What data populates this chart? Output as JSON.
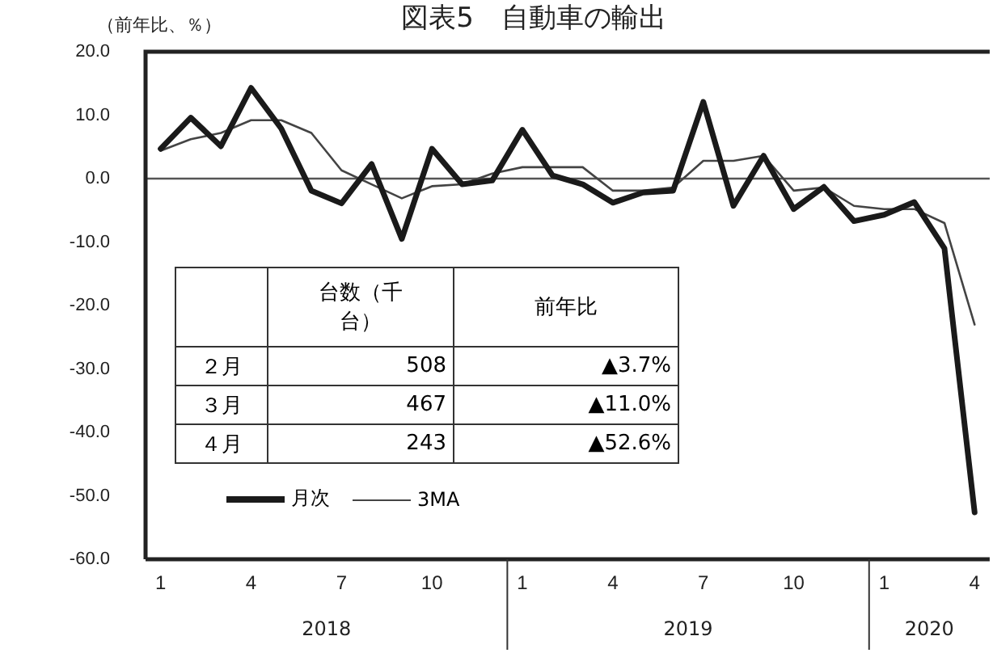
{
  "chart_data": {
    "type": "line",
    "title": "図表5　自動車の輸出",
    "ylabel": "（前年比、％）",
    "categories": [
      "1",
      null,
      null,
      "4",
      null,
      null,
      "7",
      null,
      null,
      "10",
      null,
      null,
      "1",
      null,
      null,
      "4",
      null,
      null,
      "7",
      null,
      null,
      "10",
      null,
      null,
      "1",
      null,
      null,
      "4"
    ],
    "series": [
      {
        "name": "月次",
        "color": "#1a1a1a",
        "values": [
          4.7,
          9.6,
          5.1,
          14.3,
          7.9,
          -1.9,
          -3.9,
          2.3,
          -9.5,
          4.7,
          -0.9,
          -0.3,
          7.7,
          0.5,
          -0.9,
          -3.8,
          -2.2,
          -1.9,
          12.1,
          -4.3,
          3.6,
          -4.8,
          -1.3,
          -6.7,
          -5.7,
          -3.7,
          -11.0,
          -52.6
        ]
      },
      {
        "name": "3MA",
        "color": "#444444",
        "values": [
          4.4,
          6.2,
          7.2,
          9.2,
          9.2,
          7.2,
          1.3,
          -0.9,
          -3.1,
          -1.2,
          -0.9,
          0.8,
          1.8,
          1.8,
          1.8,
          -1.9,
          -1.9,
          -1.4,
          2.8,
          2.8,
          3.6,
          -1.9,
          -1.4,
          -4.3,
          -4.8,
          -4.8,
          -7.0,
          -23.0
        ]
      }
    ],
    "ylim": [
      -60,
      20
    ],
    "yticks": [
      {
        "value": 20,
        "label": "20.0"
      },
      {
        "value": 10,
        "label": "10.0"
      },
      {
        "value": 0,
        "label": "0.0"
      },
      {
        "value": -10,
        "label": "-10.0"
      },
      {
        "value": -20,
        "label": "-20.0"
      },
      {
        "value": -30,
        "label": "-30.0"
      },
      {
        "value": -40,
        "label": "-40.0"
      },
      {
        "value": -50,
        "label": "-50.0"
      },
      {
        "value": -60,
        "label": "-60.0"
      }
    ],
    "ref_lines": [
      {
        "axis": "y",
        "value": 0,
        "color": "#555555"
      }
    ],
    "grid": false,
    "legend": "bottom left",
    "marker": "none",
    "line_style": "solid",
    "annotations": [
      "2018",
      "2019",
      "2020",
      "台数（千台）",
      "前年比",
      "２月",
      "508",
      "▲3.7%",
      "３月",
      "467",
      "▲11.0%",
      "４月",
      "243",
      "▲52.6%"
    ]
  }
}
